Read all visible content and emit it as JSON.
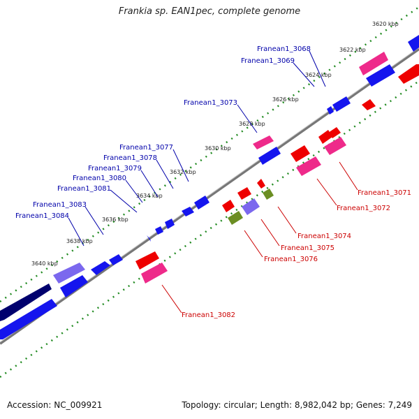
{
  "title": "Frankia sp. EAN1pec, complete genome",
  "footer": {
    "accession": "Accession: NC_009921",
    "stats": "Topology: circular; Length: 8,982,042 bp; Genes: 7,249"
  },
  "ruler": {
    "ticks": [
      {
        "label": "3620 kbp"
      },
      {
        "label": "3622 kbp"
      },
      {
        "label": "3624 kbp"
      },
      {
        "label": "3626 kbp"
      },
      {
        "label": "3628 kbp"
      },
      {
        "label": "3630 kbp"
      },
      {
        "label": "3632 kbp"
      },
      {
        "label": "3634 kbp"
      },
      {
        "label": "3636 kbp"
      },
      {
        "label": "3638 kbp"
      },
      {
        "label": "3640 kbp"
      }
    ]
  },
  "colors": {
    "forward_gene": "#1010ee",
    "reverse_gene": "#ee0000",
    "cds_pink": "#ee2a8a",
    "cds_olive": "#6b8e23",
    "cds_purple": "#7b68ee",
    "backbone": "#777777",
    "dotted_track": "#228b22",
    "label_forward": "#0000aa",
    "label_reverse": "#cc0000"
  },
  "genes_forward": [
    {
      "label": "Franean1_3068"
    },
    {
      "label": "Franean1_3069"
    },
    {
      "label": "Franean1_3073"
    },
    {
      "label": "Franean1_3077"
    },
    {
      "label": "Franean1_3078"
    },
    {
      "label": "Franean1_3079"
    },
    {
      "label": "Franean1_3080"
    },
    {
      "label": "Franean1_3081"
    },
    {
      "label": "Franean1_3083"
    },
    {
      "label": "Franean1_3084"
    }
  ],
  "genes_reverse": [
    {
      "label": "Franean1_3071"
    },
    {
      "label": "Franean1_3072"
    },
    {
      "label": "Franean1_3074"
    },
    {
      "label": "Franean1_3075"
    },
    {
      "label": "Franean1_3076"
    },
    {
      "label": "Franean1_3082"
    }
  ]
}
